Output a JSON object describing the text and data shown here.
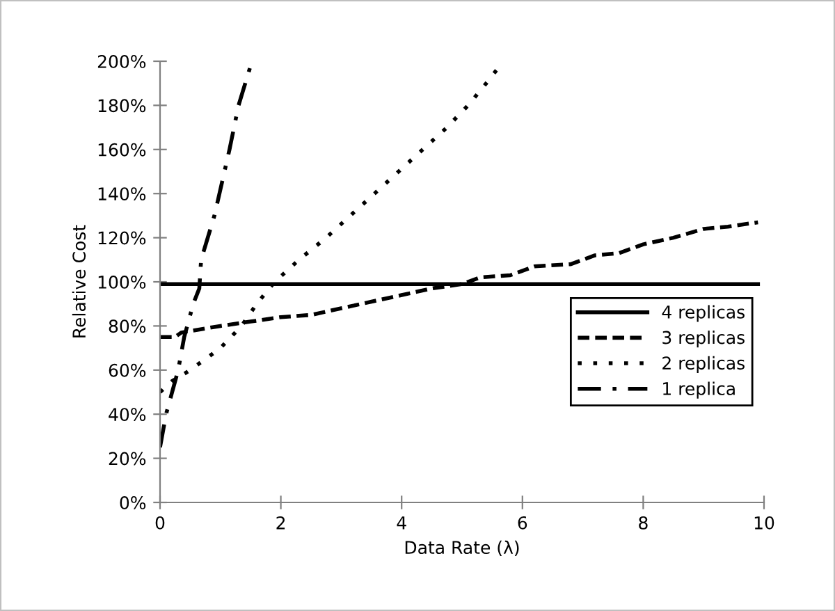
{
  "chart_data": {
    "type": "line",
    "xlabel": "Data Rate (λ)",
    "ylabel": "Relative Cost",
    "xlim": [
      0,
      10
    ],
    "xticks": [
      0,
      2,
      4,
      6,
      8,
      10
    ],
    "ylim": [
      0,
      200
    ],
    "yticks": [
      {
        "value": 0,
        "label": "0%"
      },
      {
        "value": 20,
        "label": "20%"
      },
      {
        "value": 40,
        "label": "40%"
      },
      {
        "value": 60,
        "label": "60%"
      },
      {
        "value": 80,
        "label": "80%"
      },
      {
        "value": 100,
        "label": "100%"
      },
      {
        "value": 120,
        "label": "120%"
      },
      {
        "value": 140,
        "label": "140%"
      },
      {
        "value": 160,
        "label": "160%"
      },
      {
        "value": 180,
        "label": "180%"
      },
      {
        "value": 200,
        "label": "200%"
      }
    ],
    "grid": false,
    "legend": "bottom right",
    "marker": "none",
    "series": [
      {
        "name": "4 replicas",
        "color": "#000000",
        "line_style": "solid",
        "x": [
          0,
          9.9
        ],
        "values": [
          99,
          99
        ]
      },
      {
        "name": "3 replicas",
        "color": "#000000",
        "line_style": "dashed",
        "x": [
          0,
          0.25,
          0.35,
          1.0,
          1.5,
          2.0,
          2.5,
          3.0,
          3.5,
          4.0,
          4.5,
          5.0,
          5.3,
          5.8,
          6.2,
          6.8,
          7.2,
          7.6,
          8.0,
          8.5,
          9.0,
          9.4,
          9.9
        ],
        "values": [
          75,
          75,
          77,
          80,
          82,
          84,
          85,
          88,
          91,
          94,
          97,
          99,
          102,
          103,
          107,
          108,
          112,
          113,
          117,
          120,
          124,
          125,
          127
        ]
      },
      {
        "name": "2 replicas",
        "color": "#000000",
        "line_style": "dotted",
        "x": [
          0,
          0.2,
          0.5,
          0.75,
          1.0,
          1.35,
          1.6,
          1.9,
          2.3,
          2.75,
          3.15,
          3.55,
          3.95,
          4.35,
          4.75,
          5.1,
          5.4,
          5.6
        ],
        "values": [
          50,
          55,
          60,
          65,
          70,
          80,
          90,
          100,
          110,
          120,
          130,
          140,
          150,
          160,
          170,
          180,
          190,
          197
        ]
      },
      {
        "name": "1 replica",
        "color": "#000000",
        "line_style": "dashdot",
        "x": [
          0,
          0.1,
          0.2,
          0.25,
          0.3,
          0.4,
          0.55,
          0.65,
          0.68,
          0.9,
          1.15,
          1.3,
          1.5
        ],
        "values": [
          25,
          40,
          50,
          55,
          60,
          75,
          90,
          97,
          110,
          130,
          160,
          180,
          198
        ]
      }
    ]
  }
}
